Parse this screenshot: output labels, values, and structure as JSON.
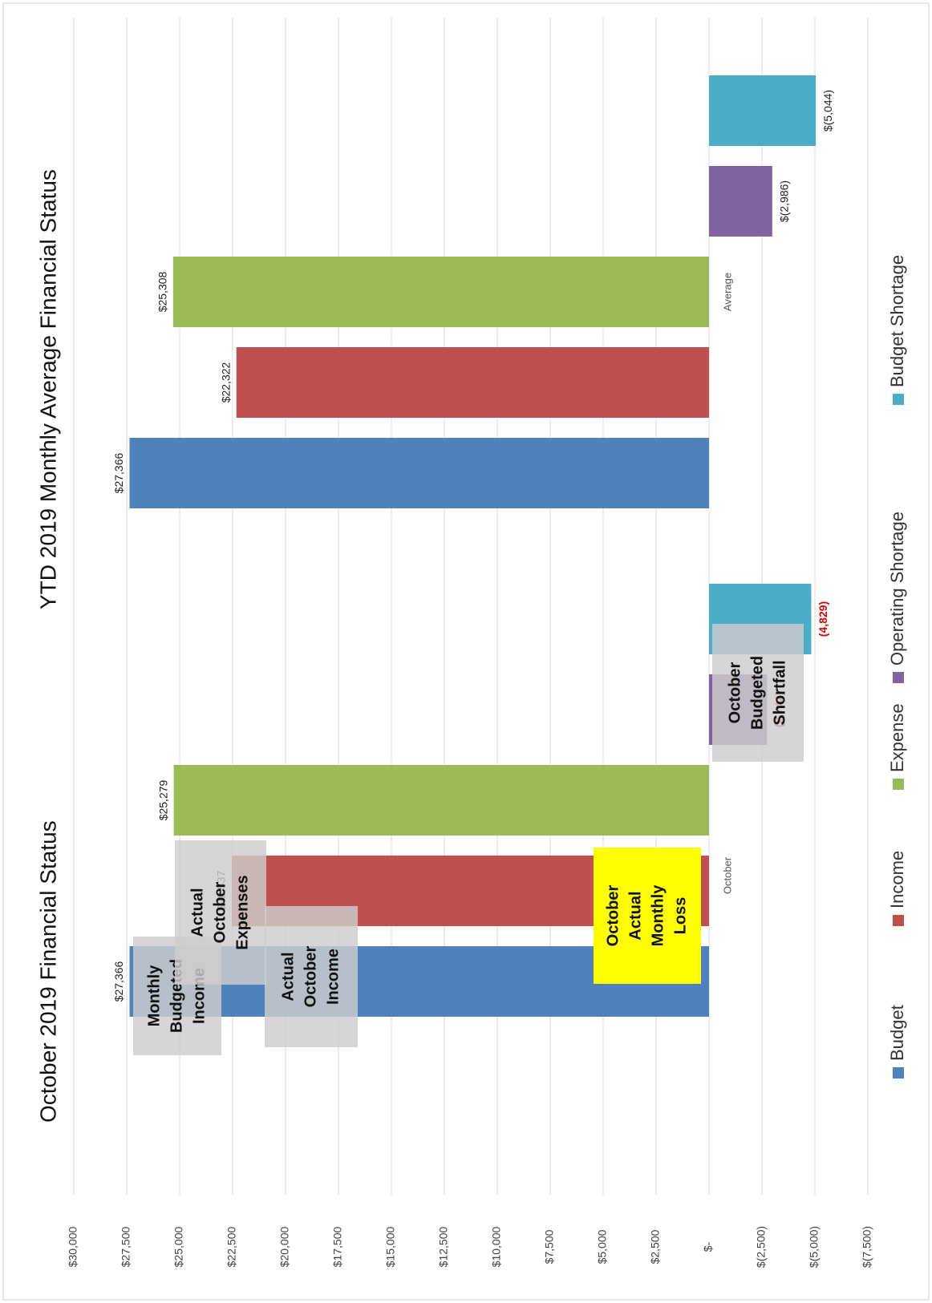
{
  "chart_data": {
    "type": "bar",
    "orientation": "rotated-90",
    "ylim": [
      -7500,
      30000
    ],
    "ytick_step": 2500,
    "ytick_labels": [
      "$30,000",
      "$27,500",
      "$25,000",
      "$22,500",
      "$20,000",
      "$17,500",
      "$15,000",
      "$12,500",
      "$10,000",
      "$7,500",
      "$5,000",
      "$2,500",
      "$-",
      "$(2,500)",
      "$(5,000)",
      "$(7,500)"
    ],
    "grid": true,
    "legend_position": "bottom",
    "panels": [
      {
        "title": "October 2019 Financial Status",
        "category": "October",
        "series": [
          {
            "name": "Budget",
            "value": 27366,
            "label": "$27,366"
          },
          {
            "name": "Income",
            "value": 22537,
            "label": "$22,537"
          },
          {
            "name": "Expense",
            "value": 25279,
            "label": "$25,279"
          },
          {
            "name": "Operating Shortage",
            "value": -2742,
            "label": "(2,742)"
          },
          {
            "name": "Budget Shortage",
            "value": -4829,
            "label": "(4,829)"
          }
        ],
        "annotations": [
          {
            "text": [
              "Monthly",
              "Budgeted",
              "Income"
            ],
            "style": "gray"
          },
          {
            "text": [
              "Actual",
              "October",
              "Income"
            ],
            "style": "gray"
          },
          {
            "text": [
              "Actual",
              "October",
              "Expenses"
            ],
            "style": "gray"
          },
          {
            "text": [
              "October",
              "Actual",
              "Monthly",
              "Loss"
            ],
            "style": "yellow"
          },
          {
            "text": [
              "October",
              "Budgeted",
              "Shortfall"
            ],
            "style": "gray"
          }
        ]
      },
      {
        "title": "YTD 2019 Monthly Average Financial Status",
        "category": "Average",
        "series": [
          {
            "name": "Budget",
            "value": 27366,
            "label": "$27,366"
          },
          {
            "name": "Income",
            "value": 22322,
            "label": "$22,322"
          },
          {
            "name": "Expense",
            "value": 25308,
            "label": "$25,308"
          },
          {
            "name": "Operating Shortage",
            "value": -2986,
            "label": "$(2,986)"
          },
          {
            "name": "Budget Shortage",
            "value": -5044,
            "label": "$(5,044)"
          }
        ]
      }
    ],
    "legend": [
      {
        "name": "Budget",
        "color": "#4f81bd"
      },
      {
        "name": "Income",
        "color": "#c0504d"
      },
      {
        "name": "Expense",
        "color": "#9bbb59"
      },
      {
        "name": "Operating Shortage",
        "color": "#8064a2"
      },
      {
        "name": "Budget Shortage",
        "color": "#4bacc6"
      }
    ]
  }
}
